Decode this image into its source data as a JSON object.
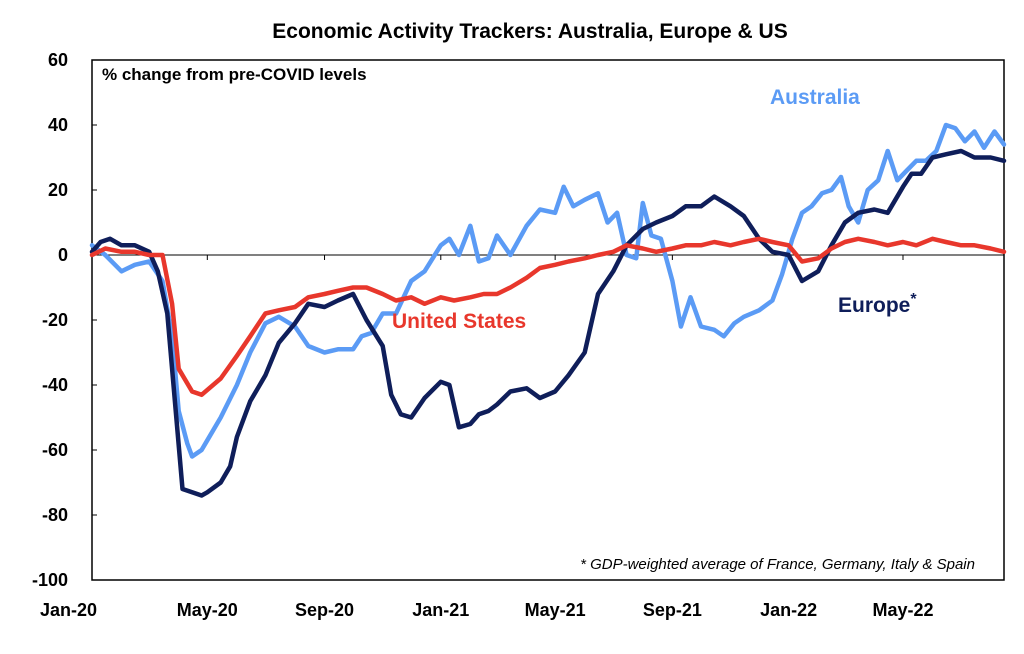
{
  "chart_data": {
    "type": "line",
    "title": "Economic Activity Trackers: Australia, Europe & US",
    "subtitle": "% change from pre-COVID levels",
    "footnote": "* GDP-weighted average of France, Germany, Italy & Spain",
    "ylim": [
      -100,
      60
    ],
    "yticks": [
      60,
      40,
      20,
      0,
      -20,
      -40,
      -60,
      -80,
      -100
    ],
    "xlim": [
      "2020-01-01",
      "2022-08-15"
    ],
    "xticks": [
      {
        "date": "2020-01-01",
        "label": "Jan-20"
      },
      {
        "date": "2020-05-01",
        "label": "May-20"
      },
      {
        "date": "2020-09-01",
        "label": "Sep-20"
      },
      {
        "date": "2021-01-01",
        "label": "Jan-21"
      },
      {
        "date": "2021-05-01",
        "label": "May-21"
      },
      {
        "date": "2021-09-01",
        "label": "Sep-21"
      },
      {
        "date": "2022-01-01",
        "label": "Jan-22"
      },
      {
        "date": "2022-05-01",
        "label": "May-22"
      }
    ],
    "grid": false,
    "series": [
      {
        "name": "Australia",
        "color": "#5b9bf5",
        "label_text": "Australia",
        "points": [
          [
            "2020-01-01",
            3
          ],
          [
            "2020-01-15",
            0
          ],
          [
            "2020-02-01",
            -5
          ],
          [
            "2020-02-15",
            -3
          ],
          [
            "2020-03-01",
            -2
          ],
          [
            "2020-03-15",
            -8
          ],
          [
            "2020-03-25",
            -25
          ],
          [
            "2020-04-01",
            -48
          ],
          [
            "2020-04-10",
            -58
          ],
          [
            "2020-04-15",
            -62
          ],
          [
            "2020-04-25",
            -60
          ],
          [
            "2020-05-01",
            -57
          ],
          [
            "2020-05-15",
            -50
          ],
          [
            "2020-06-01",
            -40
          ],
          [
            "2020-06-15",
            -30
          ],
          [
            "2020-07-01",
            -21
          ],
          [
            "2020-07-15",
            -19
          ],
          [
            "2020-08-01",
            -22
          ],
          [
            "2020-08-15",
            -28
          ],
          [
            "2020-09-01",
            -30
          ],
          [
            "2020-09-15",
            -29
          ],
          [
            "2020-10-01",
            -29
          ],
          [
            "2020-10-10",
            -25
          ],
          [
            "2020-10-20",
            -24
          ],
          [
            "2020-11-01",
            -18
          ],
          [
            "2020-11-15",
            -18
          ],
          [
            "2020-12-01",
            -8
          ],
          [
            "2020-12-15",
            -5
          ],
          [
            "2021-01-01",
            3
          ],
          [
            "2021-01-10",
            5
          ],
          [
            "2021-01-20",
            0
          ],
          [
            "2021-02-01",
            9
          ],
          [
            "2021-02-10",
            -2
          ],
          [
            "2021-02-20",
            -1
          ],
          [
            "2021-03-01",
            6
          ],
          [
            "2021-03-15",
            0
          ],
          [
            "2021-04-01",
            9
          ],
          [
            "2021-04-15",
            14
          ],
          [
            "2021-05-01",
            13
          ],
          [
            "2021-05-10",
            21
          ],
          [
            "2021-05-20",
            15
          ],
          [
            "2021-06-01",
            17
          ],
          [
            "2021-06-15",
            19
          ],
          [
            "2021-06-25",
            10
          ],
          [
            "2021-07-05",
            13
          ],
          [
            "2021-07-15",
            0
          ],
          [
            "2021-07-25",
            -1
          ],
          [
            "2021-08-01",
            16
          ],
          [
            "2021-08-10",
            6
          ],
          [
            "2021-08-20",
            5
          ],
          [
            "2021-09-01",
            -8
          ],
          [
            "2021-09-10",
            -22
          ],
          [
            "2021-09-20",
            -13
          ],
          [
            "2021-10-01",
            -22
          ],
          [
            "2021-10-15",
            -23
          ],
          [
            "2021-10-25",
            -25
          ],
          [
            "2021-11-05",
            -21
          ],
          [
            "2021-11-15",
            -19
          ],
          [
            "2021-12-01",
            -17
          ],
          [
            "2021-12-15",
            -14
          ],
          [
            "2021-12-25",
            -6
          ],
          [
            "2022-01-05",
            5
          ],
          [
            "2022-01-15",
            13
          ],
          [
            "2022-01-25",
            15
          ],
          [
            "2022-02-05",
            19
          ],
          [
            "2022-02-15",
            20
          ],
          [
            "2022-02-25",
            24
          ],
          [
            "2022-03-05",
            15
          ],
          [
            "2022-03-15",
            10
          ],
          [
            "2022-03-25",
            20
          ],
          [
            "2022-04-05",
            23
          ],
          [
            "2022-04-15",
            32
          ],
          [
            "2022-04-25",
            23
          ],
          [
            "2022-05-05",
            26
          ],
          [
            "2022-05-15",
            29
          ],
          [
            "2022-05-25",
            29
          ],
          [
            "2022-06-05",
            32
          ],
          [
            "2022-06-15",
            40
          ],
          [
            "2022-06-25",
            39
          ],
          [
            "2022-07-05",
            35
          ],
          [
            "2022-07-15",
            38
          ],
          [
            "2022-07-25",
            33
          ],
          [
            "2022-08-05",
            38
          ],
          [
            "2022-08-15",
            34
          ]
        ]
      },
      {
        "name": "Europe*",
        "color": "#0f1e5a",
        "label_text": "Europe",
        "label_suffix": "*",
        "points": [
          [
            "2020-01-01",
            1
          ],
          [
            "2020-01-10",
            4
          ],
          [
            "2020-01-20",
            5
          ],
          [
            "2020-02-01",
            3
          ],
          [
            "2020-02-15",
            3
          ],
          [
            "2020-03-01",
            1
          ],
          [
            "2020-03-10",
            -5
          ],
          [
            "2020-03-20",
            -18
          ],
          [
            "2020-03-28",
            -45
          ],
          [
            "2020-04-05",
            -72
          ],
          [
            "2020-04-15",
            -73
          ],
          [
            "2020-04-25",
            -74
          ],
          [
            "2020-05-01",
            -73
          ],
          [
            "2020-05-15",
            -70
          ],
          [
            "2020-05-25",
            -65
          ],
          [
            "2020-06-01",
            -56
          ],
          [
            "2020-06-15",
            -45
          ],
          [
            "2020-07-01",
            -37
          ],
          [
            "2020-07-15",
            -27
          ],
          [
            "2020-08-01",
            -21
          ],
          [
            "2020-08-15",
            -15
          ],
          [
            "2020-09-01",
            -16
          ],
          [
            "2020-09-15",
            -14
          ],
          [
            "2020-10-01",
            -12
          ],
          [
            "2020-10-15",
            -20
          ],
          [
            "2020-11-01",
            -28
          ],
          [
            "2020-11-10",
            -43
          ],
          [
            "2020-11-20",
            -49
          ],
          [
            "2020-12-01",
            -50
          ],
          [
            "2020-12-15",
            -44
          ],
          [
            "2021-01-01",
            -39
          ],
          [
            "2021-01-10",
            -40
          ],
          [
            "2021-01-20",
            -53
          ],
          [
            "2021-02-01",
            -52
          ],
          [
            "2021-02-10",
            -49
          ],
          [
            "2021-02-20",
            -48
          ],
          [
            "2021-03-01",
            -46
          ],
          [
            "2021-03-15",
            -42
          ],
          [
            "2021-04-01",
            -41
          ],
          [
            "2021-04-15",
            -44
          ],
          [
            "2021-05-01",
            -42
          ],
          [
            "2021-05-15",
            -37
          ],
          [
            "2021-06-01",
            -30
          ],
          [
            "2021-06-15",
            -12
          ],
          [
            "2021-07-01",
            -5
          ],
          [
            "2021-07-15",
            3
          ],
          [
            "2021-08-01",
            8
          ],
          [
            "2021-08-15",
            10
          ],
          [
            "2021-09-01",
            12
          ],
          [
            "2021-09-15",
            15
          ],
          [
            "2021-10-01",
            15
          ],
          [
            "2021-10-15",
            18
          ],
          [
            "2021-11-01",
            15
          ],
          [
            "2021-11-15",
            12
          ],
          [
            "2021-12-01",
            5
          ],
          [
            "2021-12-15",
            1
          ],
          [
            "2022-01-01",
            0
          ],
          [
            "2022-01-15",
            -8
          ],
          [
            "2022-02-01",
            -5
          ],
          [
            "2022-02-15",
            3
          ],
          [
            "2022-03-01",
            10
          ],
          [
            "2022-03-15",
            13
          ],
          [
            "2022-04-01",
            14
          ],
          [
            "2022-04-15",
            13
          ],
          [
            "2022-05-01",
            21
          ],
          [
            "2022-05-10",
            25
          ],
          [
            "2022-05-20",
            25
          ],
          [
            "2022-06-01",
            30
          ],
          [
            "2022-06-15",
            31
          ],
          [
            "2022-07-01",
            32
          ],
          [
            "2022-07-15",
            30
          ],
          [
            "2022-08-01",
            30
          ],
          [
            "2022-08-15",
            29
          ]
        ]
      },
      {
        "name": "United States",
        "color": "#e8372c",
        "label_text": "United States",
        "points": [
          [
            "2020-01-01",
            0
          ],
          [
            "2020-01-15",
            2
          ],
          [
            "2020-02-01",
            1
          ],
          [
            "2020-02-15",
            1
          ],
          [
            "2020-03-01",
            0
          ],
          [
            "2020-03-15",
            0
          ],
          [
            "2020-03-25",
            -15
          ],
          [
            "2020-04-01",
            -35
          ],
          [
            "2020-04-15",
            -42
          ],
          [
            "2020-04-25",
            -43
          ],
          [
            "2020-05-15",
            -38
          ],
          [
            "2020-06-01",
            -31
          ],
          [
            "2020-06-15",
            -25
          ],
          [
            "2020-07-01",
            -18
          ],
          [
            "2020-07-15",
            -17
          ],
          [
            "2020-08-01",
            -16
          ],
          [
            "2020-08-15",
            -13
          ],
          [
            "2020-09-01",
            -12
          ],
          [
            "2020-09-15",
            -11
          ],
          [
            "2020-10-01",
            -10
          ],
          [
            "2020-10-15",
            -10
          ],
          [
            "2020-11-01",
            -12
          ],
          [
            "2020-11-15",
            -14
          ],
          [
            "2020-12-01",
            -13
          ],
          [
            "2020-12-15",
            -15
          ],
          [
            "2021-01-01",
            -13
          ],
          [
            "2021-01-15",
            -14
          ],
          [
            "2021-02-01",
            -13
          ],
          [
            "2021-02-15",
            -12
          ],
          [
            "2021-03-01",
            -12
          ],
          [
            "2021-03-15",
            -10
          ],
          [
            "2021-04-01",
            -7
          ],
          [
            "2021-04-15",
            -4
          ],
          [
            "2021-05-01",
            -3
          ],
          [
            "2021-05-15",
            -2
          ],
          [
            "2021-06-01",
            -1
          ],
          [
            "2021-06-15",
            0
          ],
          [
            "2021-07-01",
            1
          ],
          [
            "2021-07-15",
            3
          ],
          [
            "2021-08-01",
            2
          ],
          [
            "2021-08-15",
            1
          ],
          [
            "2021-09-01",
            2
          ],
          [
            "2021-09-15",
            3
          ],
          [
            "2021-10-01",
            3
          ],
          [
            "2021-10-15",
            4
          ],
          [
            "2021-11-01",
            3
          ],
          [
            "2021-11-15",
            4
          ],
          [
            "2021-12-01",
            5
          ],
          [
            "2021-12-15",
            4
          ],
          [
            "2022-01-01",
            3
          ],
          [
            "2022-01-15",
            -2
          ],
          [
            "2022-02-01",
            -1
          ],
          [
            "2022-02-15",
            2
          ],
          [
            "2022-03-01",
            4
          ],
          [
            "2022-03-15",
            5
          ],
          [
            "2022-04-01",
            4
          ],
          [
            "2022-04-15",
            3
          ],
          [
            "2022-05-01",
            4
          ],
          [
            "2022-05-15",
            3
          ],
          [
            "2022-06-01",
            5
          ],
          [
            "2022-06-15",
            4
          ],
          [
            "2022-07-01",
            3
          ],
          [
            "2022-07-15",
            3
          ],
          [
            "2022-08-01",
            2
          ],
          [
            "2022-08-15",
            1
          ]
        ]
      }
    ]
  }
}
